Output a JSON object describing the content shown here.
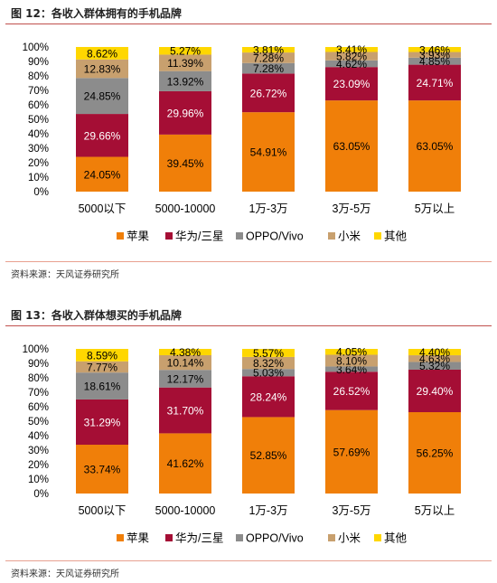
{
  "figures": [
    {
      "title": "图 12：各收入群体拥有的手机品牌",
      "source": "资料来源：天风证券研究所"
    },
    {
      "title": "图 13：各收入群体想买的手机品牌",
      "source": "资料来源：天风证券研究所"
    }
  ],
  "chart_data": [
    {
      "type": "bar",
      "stacked": true,
      "percent": true,
      "categories": [
        "5000以下",
        "5000-10000",
        "1万-3万",
        "3万-5万",
        "5万以上"
      ],
      "series": [
        {
          "name": "苹果",
          "color": "#f07f09",
          "values": [
            24.05,
            39.45,
            54.91,
            63.05,
            63.05
          ]
        },
        {
          "name": "华为/三星",
          "color": "#a50e35",
          "values": [
            29.66,
            29.96,
            26.72,
            23.09,
            24.71
          ]
        },
        {
          "name": "OPPO/Vivo",
          "color": "#8c8c8c",
          "values": [
            24.85,
            13.92,
            7.28,
            4.62,
            4.85
          ]
        },
        {
          "name": "小米",
          "color": "#c8a06e",
          "values": [
            12.83,
            11.39,
            7.28,
            5.82,
            3.93
          ]
        },
        {
          "name": "其他",
          "color": "#ffd700",
          "values": [
            8.62,
            5.27,
            3.81,
            3.41,
            3.46
          ]
        }
      ],
      "labels": [
        [
          "24.05%",
          "29.66%",
          "24.85%",
          "12.83%",
          "8.62%"
        ],
        [
          "39.45%",
          "29.96%",
          "13.92%",
          "11.39%",
          "5.27%"
        ],
        [
          "54.91%",
          "26.72%",
          "7.28%",
          "7.28%",
          "3.81%"
        ],
        [
          "63.05%",
          "23.09%",
          "4.62%",
          "5.82%",
          "3.41%"
        ],
        [
          "63.05%",
          "24.71%",
          "4.85%",
          "3.93%",
          "3.46%"
        ]
      ],
      "yticks": [
        "0%",
        "10%",
        "20%",
        "30%",
        "40%",
        "50%",
        "60%",
        "70%",
        "80%",
        "90%",
        "100%"
      ],
      "ylim": [
        0,
        100
      ],
      "legend": "bottom"
    },
    {
      "type": "bar",
      "stacked": true,
      "percent": true,
      "categories": [
        "5000以下",
        "5000-10000",
        "1万-3万",
        "3万-5万",
        "5万以上"
      ],
      "series": [
        {
          "name": "苹果",
          "color": "#f07f09",
          "values": [
            33.74,
            41.62,
            52.85,
            57.69,
            56.25
          ]
        },
        {
          "name": "华为/三星",
          "color": "#a50e35",
          "values": [
            31.29,
            31.7,
            28.24,
            26.52,
            29.4
          ]
        },
        {
          "name": "OPPO/Vivo",
          "color": "#8c8c8c",
          "values": [
            18.61,
            12.17,
            5.03,
            3.64,
            5.32
          ]
        },
        {
          "name": "小米",
          "color": "#c8a06e",
          "values": [
            7.77,
            10.14,
            8.32,
            8.1,
            4.63
          ]
        },
        {
          "name": "其他",
          "color": "#ffd700",
          "values": [
            8.59,
            4.38,
            5.57,
            4.05,
            4.4
          ]
        }
      ],
      "labels": [
        [
          "33.74%",
          "31.29%",
          "18.61%",
          "7.77%",
          "8.59%"
        ],
        [
          "41.62%",
          "31.70%",
          "12.17%",
          "10.14%",
          "4.38%"
        ],
        [
          "52.85%",
          "28.24%",
          "5.03%",
          "8.32%",
          "5.57%"
        ],
        [
          "57.69%",
          "26.52%",
          "3.64%",
          "8.10%",
          "4.05%"
        ],
        [
          "56.25%",
          "29.40%",
          "5.32%",
          "4.63%",
          "4.40%"
        ]
      ],
      "yticks": [
        "0%",
        "10%",
        "20%",
        "30%",
        "40%",
        "50%",
        "60%",
        "70%",
        "80%",
        "90%",
        "100%"
      ],
      "ylim": [
        0,
        100
      ],
      "legend": "bottom"
    }
  ]
}
